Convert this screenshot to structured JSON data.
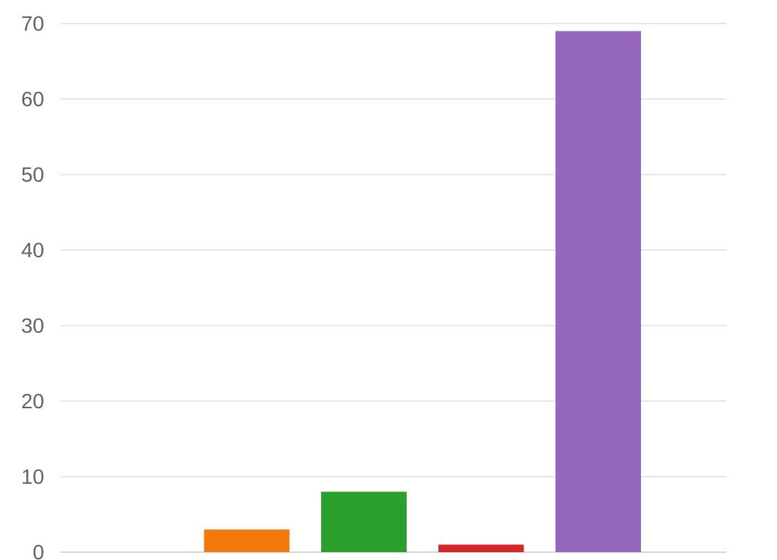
{
  "chart_data": {
    "type": "bar",
    "categories": [
      "",
      "",
      "",
      "",
      ""
    ],
    "values": [
      0,
      3,
      8,
      1,
      69
    ],
    "colors": [
      "#3366cc",
      "#f4780a",
      "#2ca02c",
      "#d62728",
      "#9467bd"
    ],
    "ylim": [
      0,
      70
    ],
    "yticks": [
      "0",
      "10",
      "20",
      "30",
      "40",
      "50",
      "60",
      "70"
    ],
    "grid": true,
    "legend": "none",
    "title": "",
    "xlabel": "",
    "ylabel": ""
  }
}
